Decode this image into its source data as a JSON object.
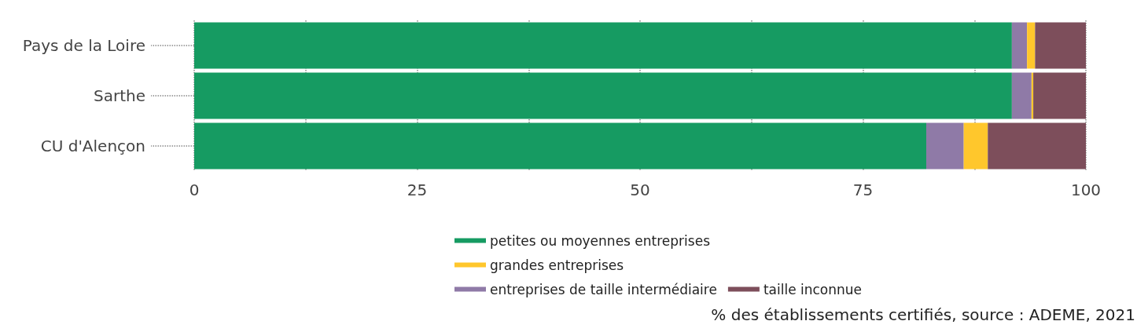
{
  "chart_data": {
    "type": "bar",
    "orientation": "horizontal",
    "stacked": true,
    "categories": [
      "Pays de la Loire",
      "Sarthe",
      "CU d'Alençon"
    ],
    "series": [
      {
        "name": "petites ou moyennes entreprises",
        "color": "#169b62",
        "values": [
          91.7,
          91.7,
          82.1
        ]
      },
      {
        "name": "entreprises de taille intermédiaire",
        "color": "#8f7aa7",
        "values": [
          1.7,
          2.2,
          4.2
        ]
      },
      {
        "name": "grandes entreprises",
        "color": "#ffc72c",
        "values": [
          0.9,
          0.2,
          2.7
        ]
      },
      {
        "name": "taille inconnue",
        "color": "#7d4e5b",
        "values": [
          5.7,
          6.0,
          11.0
        ]
      }
    ],
    "xlim": [
      0,
      100
    ],
    "xticks": [
      0,
      {
        "value": 12.5,
        "label": null
      },
      25,
      {
        "value": 37.5,
        "label": null
      },
      50,
      {
        "value": 62.5,
        "label": null
      },
      75,
      {
        "value": 87.5,
        "label": null
      },
      100
    ],
    "grid": "x",
    "line_style": "dotted",
    "legend": "bottom",
    "annotations": [
      "% des établissements certifiés, source : ADEME, 2021"
    ]
  }
}
